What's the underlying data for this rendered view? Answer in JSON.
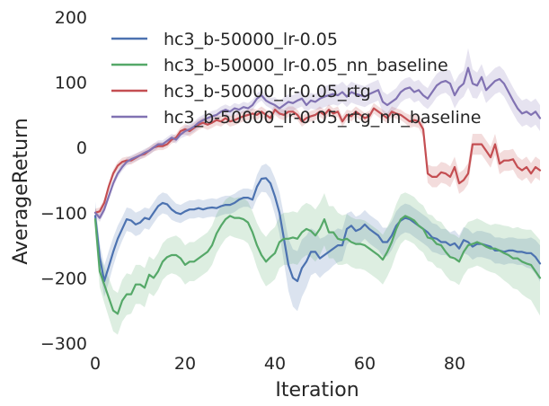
{
  "chart_data": {
    "type": "line",
    "title": "",
    "xlabel": "Iteration",
    "ylabel": "AverageReturn",
    "xlim": [
      0,
      99
    ],
    "ylim": [
      -300,
      200
    ],
    "xticks": [
      0,
      20,
      40,
      60,
      80
    ],
    "yticks": [
      -300,
      -200,
      -100,
      0,
      100,
      200
    ],
    "xtick_labels": [
      "0",
      "20",
      "40",
      "60",
      "80"
    ],
    "ytick_labels": [
      "−300",
      "−200",
      "−100",
      "0",
      "100",
      "200"
    ],
    "grid": false,
    "legend_position": "top",
    "x": [
      0,
      1,
      2,
      3,
      4,
      5,
      6,
      7,
      8,
      9,
      10,
      11,
      12,
      13,
      14,
      15,
      16,
      17,
      18,
      19,
      20,
      21,
      22,
      23,
      24,
      25,
      26,
      27,
      28,
      29,
      30,
      31,
      32,
      33,
      34,
      35,
      36,
      37,
      38,
      39,
      40,
      41,
      42,
      43,
      44,
      45,
      46,
      47,
      48,
      49,
      50,
      51,
      52,
      53,
      54,
      55,
      56,
      57,
      58,
      59,
      60,
      61,
      62,
      63,
      64,
      65,
      66,
      67,
      68,
      69,
      70,
      71,
      72,
      73,
      74,
      75,
      76,
      77,
      78,
      79,
      80,
      81,
      82,
      83,
      84,
      85,
      86,
      87,
      88,
      89,
      90,
      91,
      92,
      93,
      94,
      95,
      96,
      97,
      98,
      99
    ],
    "series": [
      {
        "name": "hc3_b-50000_lr-0.05",
        "color": "#4c72b0",
        "values": [
          -105,
          -168,
          -205,
          -183,
          -160,
          -140,
          -125,
          -110,
          -112,
          -118,
          -115,
          -108,
          -110,
          -100,
          -90,
          -85,
          -87,
          -95,
          -100,
          -102,
          -98,
          -95,
          -95,
          -93,
          -95,
          -93,
          -92,
          -93,
          -90,
          -88,
          -88,
          -85,
          -80,
          -77,
          -77,
          -80,
          -60,
          -48,
          -47,
          -55,
          -75,
          -100,
          -140,
          -180,
          -200,
          -205,
          -185,
          -175,
          -160,
          -160,
          -170,
          -165,
          -160,
          -155,
          -150,
          -150,
          -125,
          -120,
          -128,
          -125,
          -118,
          -125,
          -130,
          -135,
          -145,
          -145,
          -135,
          -120,
          -112,
          -108,
          -110,
          -115,
          -120,
          -125,
          -130,
          -138,
          -140,
          -145,
          -145,
          -150,
          -147,
          -155,
          -142,
          -145,
          -152,
          -148,
          -148,
          -150,
          -152,
          -158,
          -158,
          -160,
          -158,
          -158,
          -160,
          -160,
          -162,
          -162,
          -168,
          -178
        ],
        "band": [
          22,
          22,
          24,
          24,
          22,
          20,
          18,
          18,
          18,
          18,
          18,
          16,
          16,
          16,
          16,
          16,
          16,
          16,
          14,
          14,
          14,
          14,
          14,
          14,
          14,
          14,
          14,
          14,
          14,
          14,
          14,
          14,
          14,
          14,
          14,
          15,
          18,
          20,
          22,
          24,
          28,
          32,
          36,
          40,
          44,
          46,
          44,
          40,
          36,
          32,
          30,
          28,
          28,
          26,
          26,
          24,
          24,
          22,
          22,
          22,
          22,
          22,
          22,
          22,
          22,
          22,
          22,
          22,
          22,
          22,
          22,
          22,
          22,
          22,
          22,
          22,
          22,
          20,
          20,
          20,
          20,
          20,
          20,
          20,
          20,
          20,
          20,
          20,
          20,
          20,
          20,
          20,
          20,
          20,
          20,
          20,
          22,
          24,
          26,
          28
        ]
      },
      {
        "name": "hc3_b-50000_lr-0.05_nn_baseline",
        "color": "#55a868",
        "values": [
          -110,
          -190,
          -210,
          -230,
          -250,
          -255,
          -235,
          -225,
          -225,
          -210,
          -210,
          -215,
          -195,
          -200,
          -190,
          -175,
          -168,
          -165,
          -165,
          -170,
          -180,
          -175,
          -175,
          -170,
          -165,
          -160,
          -150,
          -132,
          -120,
          -110,
          -105,
          -108,
          -108,
          -110,
          -115,
          -130,
          -150,
          -165,
          -175,
          -168,
          -162,
          -145,
          -140,
          -140,
          -138,
          -140,
          -130,
          -125,
          -128,
          -135,
          -125,
          -110,
          -130,
          -130,
          -140,
          -142,
          -140,
          -145,
          -148,
          -148,
          -150,
          -155,
          -160,
          -165,
          -172,
          -160,
          -145,
          -125,
          -110,
          -105,
          -108,
          -112,
          -120,
          -125,
          -138,
          -140,
          -148,
          -150,
          -160,
          -168,
          -170,
          -175,
          -160,
          -150,
          -148,
          -145,
          -148,
          -152,
          -155,
          -155,
          -158,
          -162,
          -165,
          -170,
          -170,
          -175,
          -178,
          -180,
          -190,
          -200
        ],
        "band": [
          20,
          24,
          28,
          30,
          32,
          32,
          32,
          32,
          30,
          30,
          30,
          30,
          28,
          28,
          28,
          28,
          28,
          28,
          30,
          30,
          30,
          30,
          30,
          30,
          30,
          30,
          30,
          30,
          30,
          30,
          30,
          30,
          32,
          32,
          32,
          32,
          34,
          36,
          38,
          40,
          40,
          40,
          40,
          40,
          40,
          40,
          40,
          40,
          40,
          40,
          40,
          40,
          40,
          40,
          40,
          38,
          38,
          38,
          38,
          38,
          38,
          38,
          38,
          38,
          38,
          38,
          38,
          38,
          38,
          36,
          36,
          36,
          36,
          36,
          36,
          36,
          36,
          36,
          36,
          36,
          36,
          36,
          36,
          36,
          36,
          36,
          36,
          36,
          36,
          38,
          40,
          42,
          44,
          46,
          48,
          50,
          52,
          54,
          56,
          58
        ]
      },
      {
        "name": "hc3_b-50000_lr-0.05_rtg",
        "color": "#c44e52",
        "values": [
          -100,
          -98,
          -85,
          -60,
          -40,
          -28,
          -22,
          -20,
          -20,
          -16,
          -12,
          -10,
          -5,
          0,
          2,
          2,
          5,
          12,
          15,
          25,
          28,
          25,
          30,
          35,
          38,
          35,
          38,
          42,
          40,
          45,
          40,
          42,
          45,
          48,
          50,
          52,
          50,
          55,
          50,
          45,
          58,
          52,
          50,
          55,
          55,
          50,
          40,
          45,
          48,
          50,
          55,
          50,
          58,
          52,
          55,
          40,
          50,
          48,
          55,
          50,
          45,
          48,
          60,
          55,
          50,
          45,
          55,
          52,
          50,
          45,
          40,
          42,
          40,
          28,
          -40,
          -45,
          -45,
          -38,
          -40,
          -45,
          -30,
          -55,
          -50,
          -40,
          5,
          5,
          5,
          -5,
          -15,
          5,
          -25,
          -20,
          -20,
          -18,
          -30,
          -35,
          -30,
          -40,
          -30,
          -35
        ],
        "band": [
          6,
          6,
          6,
          6,
          6,
          6,
          6,
          6,
          6,
          6,
          6,
          6,
          6,
          6,
          6,
          6,
          6,
          6,
          6,
          6,
          8,
          8,
          8,
          8,
          8,
          8,
          8,
          8,
          8,
          8,
          8,
          8,
          8,
          8,
          8,
          8,
          8,
          8,
          8,
          8,
          8,
          8,
          8,
          8,
          8,
          8,
          8,
          8,
          8,
          8,
          8,
          8,
          8,
          8,
          8,
          8,
          8,
          8,
          8,
          8,
          8,
          8,
          8,
          8,
          8,
          8,
          8,
          8,
          8,
          8,
          10,
          10,
          10,
          12,
          14,
          16,
          16,
          16,
          16,
          16,
          16,
          16,
          16,
          16,
          16,
          16,
          16,
          16,
          16,
          16,
          16,
          16,
          16,
          16,
          16,
          16,
          16,
          16,
          16,
          16
        ]
      },
      {
        "name": "hc3_b-50000_lr-0.05_rtg_nn_baseline",
        "color": "#8172b2",
        "values": [
          -100,
          -108,
          -95,
          -75,
          -55,
          -40,
          -30,
          -22,
          -18,
          -15,
          -12,
          -8,
          -5,
          0,
          5,
          5,
          10,
          15,
          12,
          20,
          25,
          28,
          32,
          38,
          42,
          45,
          48,
          50,
          55,
          58,
          55,
          60,
          58,
          62,
          60,
          65,
          75,
          80,
          72,
          68,
          65,
          60,
          65,
          70,
          68,
          72,
          75,
          65,
          72,
          70,
          75,
          78,
          80,
          82,
          80,
          85,
          78,
          85,
          82,
          80,
          78,
          82,
          85,
          88,
          70,
          65,
          70,
          75,
          85,
          90,
          92,
          85,
          88,
          80,
          75,
          85,
          95,
          100,
          102,
          98,
          80,
          92,
          98,
          122,
          98,
          95,
          108,
          88,
          95,
          102,
          105,
          98,
          85,
          72,
          60,
          52,
          55,
          50,
          55,
          45
        ],
        "band": [
          6,
          6,
          6,
          6,
          6,
          6,
          6,
          6,
          6,
          6,
          6,
          6,
          6,
          6,
          6,
          6,
          6,
          6,
          6,
          6,
          8,
          8,
          8,
          8,
          8,
          8,
          8,
          8,
          8,
          8,
          8,
          8,
          8,
          8,
          8,
          8,
          8,
          8,
          8,
          8,
          12,
          12,
          12,
          12,
          12,
          12,
          12,
          12,
          12,
          12,
          16,
          16,
          16,
          16,
          16,
          16,
          16,
          16,
          16,
          16,
          16,
          16,
          16,
          16,
          16,
          16,
          16,
          16,
          16,
          16,
          16,
          16,
          16,
          16,
          16,
          18,
          18,
          18,
          18,
          20,
          20,
          20,
          20,
          30,
          22,
          20,
          20,
          20,
          20,
          20,
          20,
          20,
          20,
          20,
          20,
          20,
          20,
          20,
          20,
          20
        ]
      }
    ]
  }
}
